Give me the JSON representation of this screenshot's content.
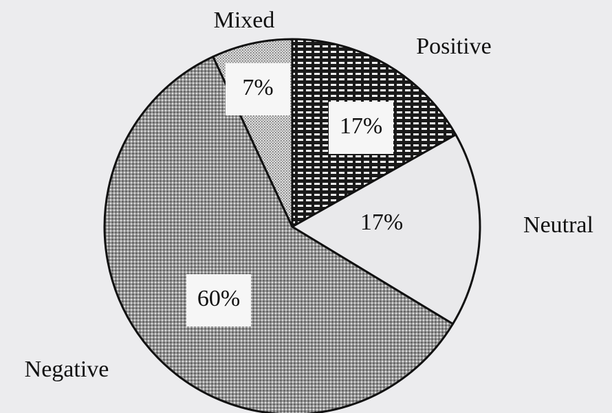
{
  "chart_data": {
    "type": "pie",
    "categories": [
      "Positive",
      "Neutral",
      "Negative",
      "Mixed"
    ],
    "values": [
      17,
      17,
      60,
      7
    ],
    "value_labels": [
      "17%",
      "17%",
      "60%",
      "7%"
    ]
  }
}
